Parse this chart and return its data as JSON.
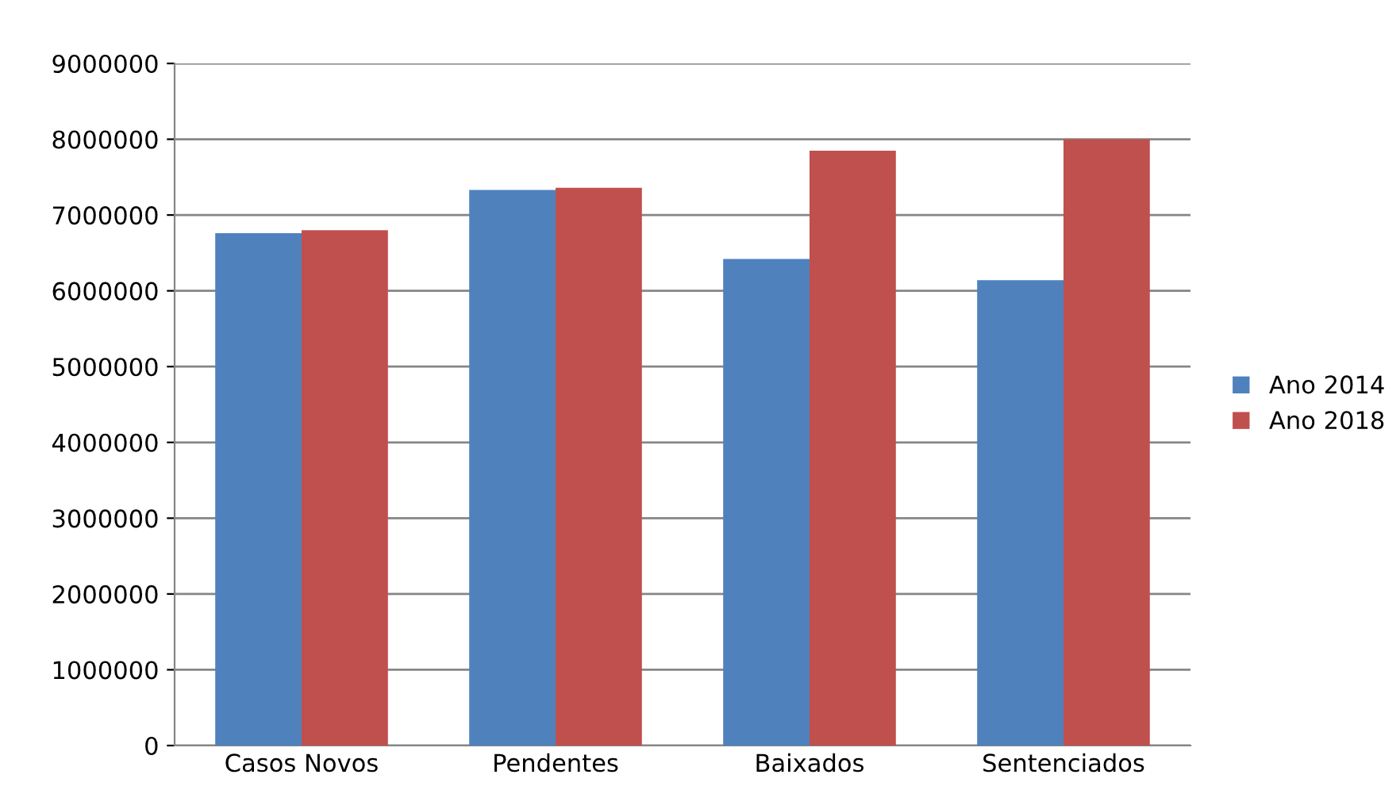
{
  "chart_data": {
    "type": "bar",
    "categories": [
      "Casos Novos",
      "Pendentes",
      "Baixados",
      "Sentenciados"
    ],
    "series": [
      {
        "name": "Ano 2014",
        "color": "#4f81bd",
        "values": [
          6760000,
          7330000,
          6420000,
          6140000
        ]
      },
      {
        "name": "Ano 2018",
        "color": "#c0504d",
        "values": [
          6800000,
          7360000,
          7850000,
          8000000
        ]
      }
    ],
    "ylim": [
      0,
      9000000
    ],
    "yticks": [
      0,
      1000000,
      2000000,
      3000000,
      4000000,
      5000000,
      6000000,
      7000000,
      8000000,
      9000000
    ],
    "grid": "y",
    "legend": "right"
  }
}
